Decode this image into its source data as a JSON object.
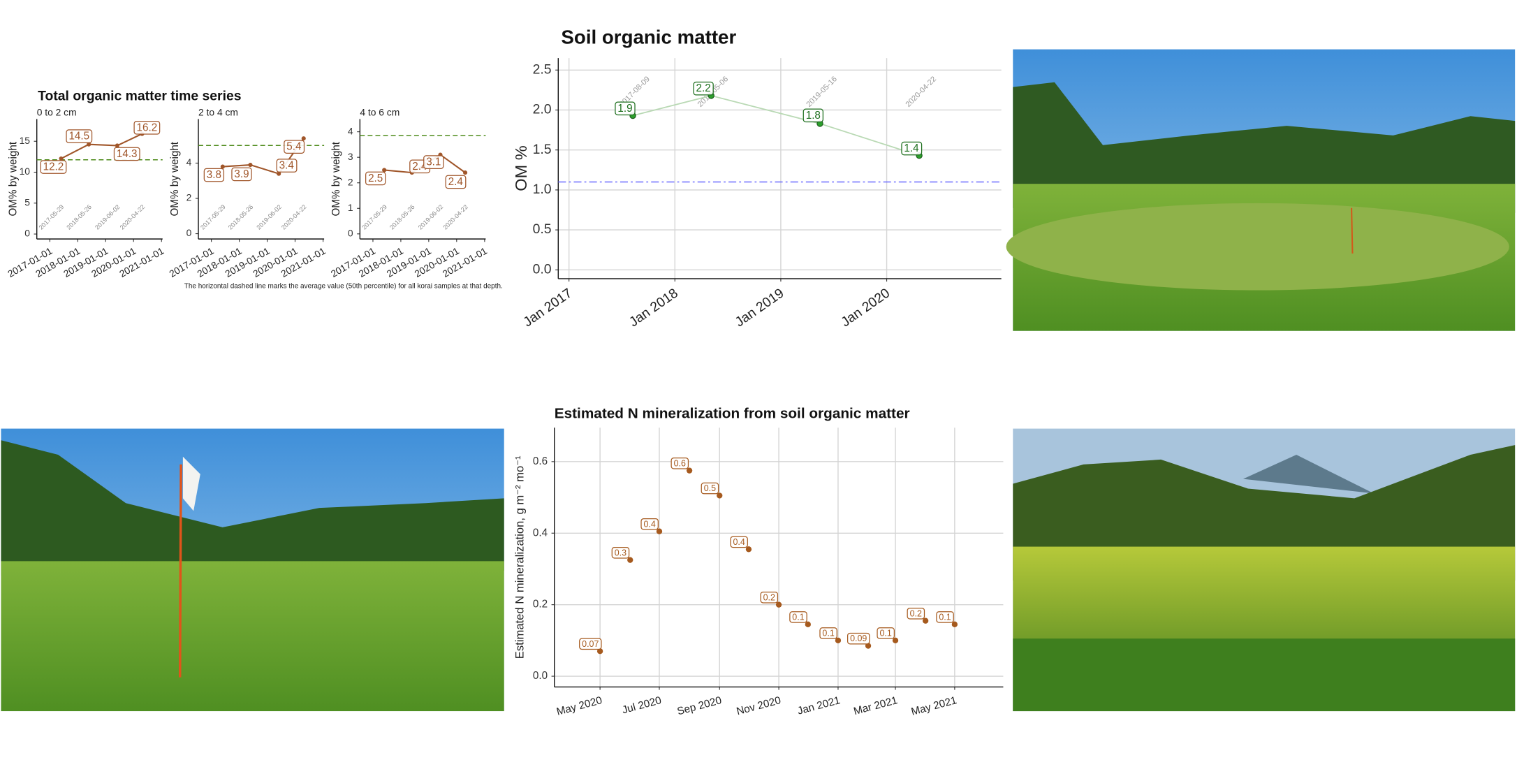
{
  "chart_data": [
    {
      "type": "line",
      "title": "Total organic matter time series",
      "subtitle": "0 to 2 cm",
      "ylabel": "OM% by weight",
      "x": [
        "2017-05-29",
        "2018-05-26",
        "2019-06-02",
        "2020-04-22"
      ],
      "values": [
        12.2,
        14.5,
        14.3,
        16.2
      ],
      "color": "#a0562a",
      "reference_line": 12,
      "reference_color": "#4d8a1a",
      "xlim": [
        "2016-07-15",
        "2021-01-15"
      ],
      "xticks": [
        "2017-01-01",
        "2018-01-01",
        "2019-01-01",
        "2020-01-01",
        "2021-01-01"
      ],
      "ylim": [
        -0.8,
        18.6
      ],
      "yticks": [
        0,
        5,
        10,
        15
      ],
      "grid": false
    },
    {
      "type": "line",
      "subtitle": "2 to 4 cm",
      "ylabel": "OM% by weight",
      "x": [
        "2017-05-29",
        "2018-05-26",
        "2019-06-02",
        "2020-04-22"
      ],
      "values": [
        3.8,
        3.9,
        3.4,
        5.4
      ],
      "color": "#a0562a",
      "reference_line": 5,
      "reference_color": "#4d8a1a",
      "xlim": [
        "2016-07-15",
        "2021-01-15"
      ],
      "xticks": [
        "2017-01-01",
        "2018-01-01",
        "2019-01-01",
        "2020-01-01",
        "2021-01-01"
      ],
      "ylim": [
        -0.3,
        6.5
      ],
      "yticks": [
        0,
        2,
        4
      ],
      "grid": false,
      "caption": "The horizontal dashed line marks the average value (50th percentile) for all korai samples at that depth."
    },
    {
      "type": "line",
      "subtitle": "4 to 6 cm",
      "ylabel": "OM% by weight",
      "x": [
        "2017-05-29",
        "2018-05-26",
        "2019-06-02",
        "2020-04-22"
      ],
      "values": [
        2.5,
        2.4,
        3.1,
        2.4
      ],
      "color": "#a0562a",
      "reference_line": 3.85,
      "reference_color": "#4d8a1a",
      "xlim": [
        "2016-07-15",
        "2021-01-15"
      ],
      "xticks": [
        "2017-01-01",
        "2018-01-01",
        "2019-01-01",
        "2020-01-01",
        "2021-01-01"
      ],
      "ylim": [
        -0.2,
        4.5
      ],
      "yticks": [
        0,
        1,
        2,
        3,
        4
      ],
      "grid": false
    },
    {
      "type": "line",
      "title": "Soil organic matter",
      "ylabel": "OM %",
      "x": [
        "2017-08-09",
        "2018-05-06",
        "2019-05-16",
        "2020-04-22"
      ],
      "values": [
        1.93,
        2.18,
        1.83,
        1.43
      ],
      "value_labels": [
        "1.9",
        "2.2",
        "1.8",
        "1.4"
      ],
      "color": "#2ca02c",
      "line_color": "#b9d9b4",
      "reference_line": 1.1,
      "reference_color": "#6b6bff",
      "xlim": [
        "2016-11-25",
        "2021-01-30"
      ],
      "xticks": [
        {
          "value": "2017-01-01",
          "label": "Jan 2017"
        },
        {
          "value": "2018-01-01",
          "label": "Jan 2018"
        },
        {
          "value": "2019-01-01",
          "label": "Jan 2019"
        },
        {
          "value": "2020-01-01",
          "label": "Jan 2020"
        }
      ],
      "ylim": [
        -0.11,
        2.65
      ],
      "yticks": [
        {
          "value": 0,
          "label": "0.0"
        },
        0.5,
        {
          "value": 1,
          "label": "1.0"
        },
        1.5,
        {
          "value": 2,
          "label": "2.0"
        },
        2.5
      ],
      "grid": true
    },
    {
      "type": "scatter",
      "title": "Estimated N mineralization from soil organic matter",
      "ylabel": "Estimated N mineralization, g m⁻² mo⁻¹",
      "x": [
        "2020-05",
        "2020-06",
        "2020-07",
        "2020-08",
        "2020-09",
        "2020-10",
        "2020-11",
        "2020-12",
        "2021-01",
        "2021-02",
        "2021-03",
        "2021-04",
        "2021-05"
      ],
      "values": [
        0.07,
        0.325,
        0.405,
        0.575,
        0.505,
        0.355,
        0.2,
        0.145,
        0.1,
        0.085,
        0.1,
        0.155,
        0.145
      ],
      "value_labels": [
        "0.07",
        "0.3",
        "0.4",
        "0.6",
        "0.5",
        "0.4",
        "0.2",
        "0.1",
        "0.1",
        "0.09",
        "0.1",
        "0.2",
        "0.1"
      ],
      "color": "#a65a1e",
      "xlim": [
        "2020-03-15",
        "2021-06-20"
      ],
      "xticks": [
        {
          "value": "2020-05",
          "label": "May 2020"
        },
        {
          "value": "2020-07",
          "label": "Jul 2020"
        },
        {
          "value": "2020-09",
          "label": "Sep 2020"
        },
        {
          "value": "2020-11",
          "label": "Nov 2020"
        },
        {
          "value": "2021-01",
          "label": "Jan 2021"
        },
        {
          "value": "2021-03",
          "label": "Mar 2021"
        },
        {
          "value": "2021-05",
          "label": "May 2021"
        }
      ],
      "ylim": [
        -0.03,
        0.695
      ],
      "yticks": [
        {
          "value": 0,
          "label": "0.0"
        },
        0.2,
        0.4,
        0.6
      ],
      "grid": true
    }
  ]
}
